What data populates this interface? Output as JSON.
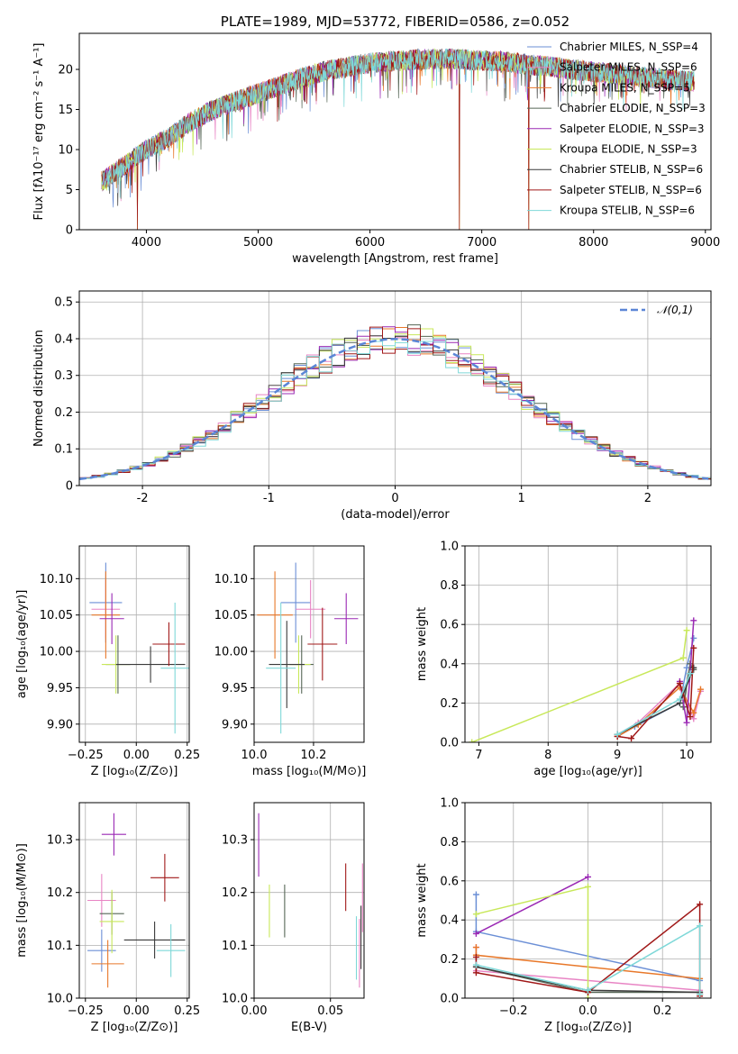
{
  "palette": [
    "#6b8fd6",
    "#e884c4",
    "#e8782a",
    "#566656",
    "#9a28b4",
    "#c8e85a",
    "#3a3a3a",
    "#a01818",
    "#7ed8d8"
  ],
  "chart_data": [
    {
      "id": "spectrum",
      "type": "line",
      "title": "PLATE=1989, MJD=53772, FIBERID=0586, z=0.052",
      "xlabel": "wavelength [Angstrom, rest frame]",
      "ylabel": "Flux [fλ10⁻¹⁷ erg cm⁻² s⁻¹ A⁻¹]",
      "xlim": [
        3400,
        9050
      ],
      "ylim": [
        0,
        24.5
      ],
      "xticks": [
        4000,
        5000,
        6000,
        7000,
        8000,
        9000
      ],
      "yticks": [
        0,
        5,
        10,
        15,
        20
      ],
      "grid": false,
      "legend": "upper right",
      "series": [
        {
          "name": "Chabrier MILES, N_SSP=4"
        },
        {
          "name": "Salpeter MILES, N_SSP=6"
        },
        {
          "name": "Kroupa MILES, N_SSP=5"
        },
        {
          "name": "Chabrier ELODIE, N_SSP=3"
        },
        {
          "name": "Salpeter ELODIE, N_SSP=3"
        },
        {
          "name": "Kroupa ELODIE, N_SSP=3"
        },
        {
          "name": "Chabrier STELIB, N_SSP=6"
        },
        {
          "name": "Salpeter STELIB, N_SSP=6"
        },
        {
          "name": "Kroupa STELIB, N_SSP=6"
        }
      ],
      "data_range": [
        3600,
        8900
      ],
      "continuum": [
        [
          3600,
          6
        ],
        [
          3800,
          8
        ],
        [
          4000,
          10
        ],
        [
          4200,
          11.5
        ],
        [
          4400,
          13.5
        ],
        [
          4600,
          15
        ],
        [
          4800,
          16
        ],
        [
          5000,
          17
        ],
        [
          5200,
          18
        ],
        [
          5400,
          19
        ],
        [
          5600,
          19.8
        ],
        [
          5800,
          20.3
        ],
        [
          6000,
          20.8
        ],
        [
          6200,
          21
        ],
        [
          6400,
          21.2
        ],
        [
          6600,
          21.3
        ],
        [
          6800,
          21.3
        ],
        [
          7000,
          21.1
        ],
        [
          7200,
          21
        ],
        [
          7400,
          20.6
        ],
        [
          7600,
          20.4
        ],
        [
          7800,
          20
        ],
        [
          8000,
          19.7
        ],
        [
          8200,
          19.4
        ],
        [
          8400,
          19.1
        ],
        [
          8600,
          18.8
        ],
        [
          8800,
          18.6
        ],
        [
          8900,
          18.5
        ]
      ],
      "dropouts": [
        [
          3920,
          0
        ],
        [
          6800,
          0
        ],
        [
          7420,
          0
        ]
      ]
    },
    {
      "id": "residuals",
      "type": "line",
      "xlabel": "(data-model)/error",
      "ylabel": "Normed distribution",
      "xlim": [
        -2.5,
        2.5
      ],
      "ylim": [
        0,
        0.53
      ],
      "xticks": [
        -2,
        -1,
        0,
        1,
        2
      ],
      "yticks": [
        0.0,
        0.1,
        0.2,
        0.3,
        0.4,
        0.5
      ],
      "grid": true,
      "legend": "upper right",
      "normal_curve": {
        "name": "𝒩(0,1)",
        "mean": 0,
        "sigma": 1
      },
      "bin_width": 0.1
    },
    {
      "id": "age_vs_Z",
      "type": "scatter",
      "xlabel": "Z [log₁₀(Z/Z⊙)]",
      "ylabel": "age  [log₁₀(age/yr)]",
      "xlim": [
        -0.28,
        0.26
      ],
      "ylim": [
        9.875,
        10.145
      ],
      "xticks": [
        -0.25,
        0.0,
        0.25
      ],
      "xtick_labels": [
        "−0.25",
        "0.00",
        "0.25"
      ],
      "yticks": [
        9.9,
        9.95,
        10.0,
        10.05,
        10.1
      ],
      "ytick_labels": [
        "9.90",
        "9.95",
        "10.00",
        "10.05",
        "10.10"
      ],
      "grid": true,
      "points": [
        {
          "x": -0.15,
          "xerr": 0.08,
          "y": 10.067,
          "yerr": 0.055
        },
        {
          "x": -0.15,
          "xerr": 0.07,
          "y": 10.058,
          "yerr": 0.04
        },
        {
          "x": -0.15,
          "xerr": 0.07,
          "y": 10.05,
          "yerr": 0.06
        },
        {
          "x": -0.09,
          "xerr": 0.06,
          "y": 9.982,
          "yerr": 0.04
        },
        {
          "x": -0.12,
          "xerr": 0.06,
          "y": 10.045,
          "yerr": 0.035
        },
        {
          "x": -0.1,
          "xerr": 0.07,
          "y": 9.982,
          "yerr": 0.04
        },
        {
          "x": 0.07,
          "xerr": 0.17,
          "y": 9.982,
          "yerr": 0.025
        },
        {
          "x": 0.16,
          "xerr": 0.08,
          "y": 10.01,
          "yerr": 0.03
        },
        {
          "x": 0.19,
          "xerr": 0.07,
          "y": 9.977,
          "yerr": 0.09
        }
      ]
    },
    {
      "id": "age_vs_mass",
      "type": "scatter",
      "xlabel": "mass [log₁₀(M/M⊙)]",
      "ylabel": "",
      "xlim": [
        10.0,
        10.37
      ],
      "ylim": [
        9.875,
        10.145
      ],
      "xticks": [
        10.0,
        10.2
      ],
      "xtick_labels": [
        "10.0",
        "10.2"
      ],
      "yticks": [
        9.9,
        9.95,
        10.0,
        10.05,
        10.1
      ],
      "ytick_labels": [
        "9.90",
        "9.95",
        "10.00",
        "10.05",
        "10.10"
      ],
      "grid": true,
      "points": [
        {
          "x": 10.14,
          "xerr": 0.05,
          "y": 10.067,
          "yerr": 0.055
        },
        {
          "x": 10.19,
          "xerr": 0.05,
          "y": 10.058,
          "yerr": 0.04
        },
        {
          "x": 10.07,
          "xerr": 0.06,
          "y": 10.05,
          "yerr": 0.06
        },
        {
          "x": 10.16,
          "xerr": 0.04,
          "y": 9.982,
          "yerr": 0.04
        },
        {
          "x": 10.31,
          "xerr": 0.04,
          "y": 10.045,
          "yerr": 0.035
        },
        {
          "x": 10.15,
          "xerr": 0.04,
          "y": 9.982,
          "yerr": 0.04
        },
        {
          "x": 10.11,
          "xerr": 0.06,
          "y": 9.982,
          "yerr": 0.06
        },
        {
          "x": 10.23,
          "xerr": 0.05,
          "y": 10.01,
          "yerr": 0.05
        },
        {
          "x": 10.09,
          "xerr": 0.05,
          "y": 9.977,
          "yerr": 0.09
        }
      ]
    },
    {
      "id": "weight_vs_age",
      "type": "line",
      "xlabel": "age  [log₁₀(age/yr)]",
      "ylabel": "mass weight",
      "xlim": [
        6.8,
        10.35
      ],
      "ylim": [
        0,
        1.0
      ],
      "xticks": [
        7,
        8,
        9,
        10
      ],
      "yticks": [
        0.0,
        0.2,
        0.4,
        0.6,
        0.8,
        1.0
      ],
      "ytick_labels": [
        "0.0",
        "0.2",
        "0.4",
        "0.6",
        "0.8",
        "1.0"
      ],
      "grid": true,
      "series": [
        {
          "x": [
            9.0,
            9.25,
            9.9,
            10.0,
            10.1
          ],
          "y": [
            0.03,
            0.08,
            0.2,
            0.38,
            0.53
          ]
        },
        {
          "x": [
            9.0,
            9.3,
            9.9,
            10.1,
            10.2
          ],
          "y": [
            0.04,
            0.1,
            0.3,
            0.12,
            0.26
          ]
        },
        {
          "x": [
            9.0,
            9.3,
            9.9,
            10.1,
            10.2
          ],
          "y": [
            0.03,
            0.09,
            0.28,
            0.15,
            0.27
          ]
        },
        {
          "x": [
            9.95,
            10.05,
            10.1
          ],
          "y": [
            0.18,
            0.4,
            0.37
          ]
        },
        {
          "x": [
            9.9,
            10.0,
            10.1
          ],
          "y": [
            0.31,
            0.1,
            0.62
          ]
        },
        {
          "x": [
            6.9,
            9.95,
            10.0
          ],
          "y": [
            0.0,
            0.43,
            0.57
          ]
        },
        {
          "x": [
            9.0,
            9.9,
            10.1
          ],
          "y": [
            0.04,
            0.2,
            0.38
          ]
        },
        {
          "x": [
            9.0,
            9.2,
            9.9,
            10.05,
            10.1
          ],
          "y": [
            0.03,
            0.02,
            0.3,
            0.13,
            0.48
          ]
        },
        {
          "x": [
            9.0,
            9.9,
            10.05
          ],
          "y": [
            0.04,
            0.22,
            0.35
          ]
        }
      ]
    },
    {
      "id": "mass_vs_Z",
      "type": "scatter",
      "xlabel": "Z [log₁₀(Z/Z⊙)]",
      "ylabel": "mass [log₁₀(M/M⊙)]",
      "xlim": [
        -0.28,
        0.26
      ],
      "ylim": [
        10.0,
        10.37
      ],
      "xticks": [
        -0.25,
        0.0,
        0.25
      ],
      "xtick_labels": [
        "−0.25",
        "0.00",
        "0.25"
      ],
      "yticks": [
        10.0,
        10.1,
        10.2,
        10.3
      ],
      "ytick_labels": [
        "10.0",
        "10.1",
        "10.2",
        "10.3"
      ],
      "grid": true,
      "points": [
        {
          "x": -0.17,
          "xerr": 0.07,
          "y": 10.09,
          "yerr": 0.04
        },
        {
          "x": -0.17,
          "xerr": 0.07,
          "y": 10.185,
          "yerr": 0.05
        },
        {
          "x": -0.14,
          "xerr": 0.08,
          "y": 10.065,
          "yerr": 0.045
        },
        {
          "x": -0.12,
          "xerr": 0.06,
          "y": 10.16,
          "yerr": 0.04
        },
        {
          "x": -0.11,
          "xerr": 0.06,
          "y": 10.31,
          "yerr": 0.04
        },
        {
          "x": -0.12,
          "xerr": 0.06,
          "y": 10.145,
          "yerr": 0.06
        },
        {
          "x": 0.09,
          "xerr": 0.15,
          "y": 10.11,
          "yerr": 0.035
        },
        {
          "x": 0.14,
          "xerr": 0.07,
          "y": 10.228,
          "yerr": 0.045
        },
        {
          "x": 0.17,
          "xerr": 0.07,
          "y": 10.09,
          "yerr": 0.05
        }
      ]
    },
    {
      "id": "mass_vs_ebv",
      "type": "scatter",
      "xlabel": "E(B-V)",
      "ylabel": "",
      "xlim": [
        0.0,
        0.072
      ],
      "ylim": [
        10.0,
        10.37
      ],
      "xticks": [
        0.0,
        0.05
      ],
      "xtick_labels": [
        "0.00",
        "0.05"
      ],
      "yticks": [
        10.0,
        10.1,
        10.2,
        10.3
      ],
      "ytick_labels": [
        "10.0",
        "10.1",
        "10.2",
        "10.3"
      ],
      "grid": true,
      "points": [
        {
          "x": 0.003,
          "y": 10.29,
          "yerr": 0.06
        },
        {
          "x": 0.01,
          "y": 10.165,
          "yerr": 0.05
        },
        {
          "x": 0.02,
          "y": 10.165,
          "yerr": 0.05
        },
        {
          "x": 0.06,
          "y": 10.21,
          "yerr": 0.045
        },
        {
          "x": 0.067,
          "y": 10.095,
          "yerr": 0.06
        },
        {
          "x": 0.069,
          "y": 10.085,
          "yerr": 0.065
        },
        {
          "x": 0.07,
          "y": 10.115,
          "yerr": 0.06
        },
        {
          "x": 0.071,
          "y": 10.19,
          "yerr": 0.065
        }
      ]
    },
    {
      "id": "weight_vs_Z",
      "type": "line",
      "xlabel": "Z [log₁₀(Z/Z⊙)]",
      "ylabel": "mass weight",
      "xlim": [
        -0.33,
        0.33
      ],
      "ylim": [
        0,
        1.0
      ],
      "xticks": [
        -0.2,
        0.0,
        0.2
      ],
      "xtick_labels": [
        "−0.2",
        "0.0",
        "0.2"
      ],
      "yticks": [
        0.0,
        0.2,
        0.4,
        0.6,
        0.8,
        1.0
      ],
      "ytick_labels": [
        "0.0",
        "0.2",
        "0.4",
        "0.6",
        "0.8",
        "1.0"
      ],
      "grid": true,
      "series": [
        {
          "x": [
            -0.3,
            -0.3,
            0.3,
            0.3
          ],
          "y": [
            0.53,
            0.34,
            0.09,
            0.02
          ]
        },
        {
          "x": [
            -0.3,
            -0.3,
            0.3,
            0.3
          ],
          "y": [
            0.26,
            0.14,
            0.04,
            0.02
          ]
        },
        {
          "x": [
            -0.3,
            -0.3,
            0.3,
            0.3
          ],
          "y": [
            0.26,
            0.22,
            0.1,
            0.02
          ]
        },
        {
          "x": [
            -0.3,
            0.0,
            0.3
          ],
          "y": [
            0.16,
            0.03,
            0.03
          ]
        },
        {
          "x": [
            -0.3,
            0.0
          ],
          "y": [
            0.33,
            0.62
          ]
        },
        {
          "x": [
            -0.3,
            0.0,
            0.0
          ],
          "y": [
            0.43,
            0.57,
            0.0
          ]
        },
        {
          "x": [
            -0.3,
            0.0,
            0.3
          ],
          "y": [
            0.16,
            0.04,
            0.03
          ]
        },
        {
          "x": [
            -0.3,
            -0.3,
            0.0,
            0.3,
            0.3
          ],
          "y": [
            0.21,
            0.13,
            0.03,
            0.48,
            0.01
          ]
        },
        {
          "x": [
            -0.3,
            0.0,
            0.3,
            0.3
          ],
          "y": [
            0.17,
            0.04,
            0.37,
            0.02
          ]
        }
      ]
    }
  ]
}
